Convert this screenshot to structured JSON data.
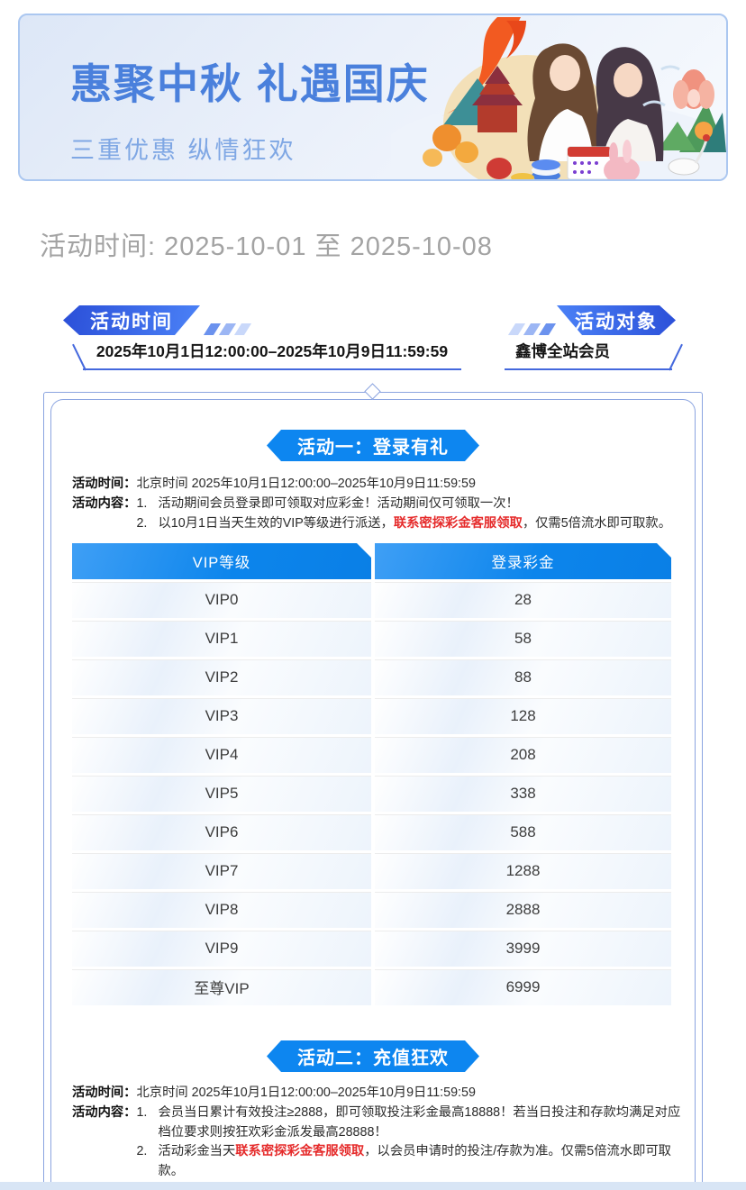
{
  "banner": {
    "title": "惠聚中秋 礼遇国庆",
    "subtitle": "三重优惠 纵情狂欢",
    "illustration_name": "mid-autumn-national-day-collage"
  },
  "page": {
    "date_line": "活动时间: 2025-10-01 至 2025-10-08"
  },
  "badges": {
    "time": {
      "label": "活动时间",
      "value": "2025年10月1日12:00:00–2025年10月9日11:59:59"
    },
    "audience": {
      "label": "活动对象",
      "value": "鑫博全站会员"
    }
  },
  "activity1": {
    "title": "活动一：登录有礼",
    "time_label": "活动时间：",
    "time_value": "北京时间 2025年10月1日12:00:00–2025年10月9日11:59:59",
    "content_label": "活动内容：",
    "items": [
      {
        "num": "1.",
        "prefix": "活动期间会员登录即可领取对应彩金！活动期间仅可领取一次！",
        "highlight": "",
        "suffix": ""
      },
      {
        "num": "2.",
        "prefix": "以10月1日当天生效的VIP等级进行派送，",
        "highlight": "联系密探彩金客服领取",
        "suffix": "，仅需5倍流水即可取款。"
      }
    ],
    "table": {
      "headers": [
        "VIP等级",
        "登录彩金"
      ],
      "rows": [
        [
          "VIP0",
          "28"
        ],
        [
          "VIP1",
          "58"
        ],
        [
          "VIP2",
          "88"
        ],
        [
          "VIP3",
          "128"
        ],
        [
          "VIP4",
          "208"
        ],
        [
          "VIP5",
          "338"
        ],
        [
          "VIP6",
          "588"
        ],
        [
          "VIP7",
          "1288"
        ],
        [
          "VIP8",
          "2888"
        ],
        [
          "VIP9",
          "3999"
        ],
        [
          "至尊VIP",
          "6999"
        ]
      ]
    }
  },
  "activity2": {
    "title": "活动二：充值狂欢",
    "time_label": "活动时间：",
    "time_value": "北京时间 2025年10月1日12:00:00–2025年10月9日11:59:59",
    "content_label": "活动内容：",
    "items": [
      {
        "num": "1.",
        "prefix": "会员当日累计有效投注≥2888，即可领取投注彩金最高18888！若当日投注和存款均满足对应档位要求则按狂欢彩金派发最高28888！",
        "highlight": "",
        "suffix": ""
      },
      {
        "num": "2.",
        "prefix": "活动彩金当天",
        "highlight": "联系密探彩金客服领取",
        "suffix": "，以会员申请时的投注/存款为准。仅需5倍流水即可取款。"
      }
    ]
  },
  "colors": {
    "accent_blue": "#0d86f0",
    "table_header_blue": "#0c85ec",
    "ribbon_blue_dark": "#2b4fd8",
    "ribbon_blue_light": "#4b82f7",
    "banner_title_blue": "#4a80dc",
    "banner_subtitle_blue": "#7fa7e4",
    "highlight_red": "#e52b2b",
    "frame_border": "#8ba4e0",
    "muted_gray": "#a3a3a3",
    "bottom_band": "#d8e5f5"
  }
}
